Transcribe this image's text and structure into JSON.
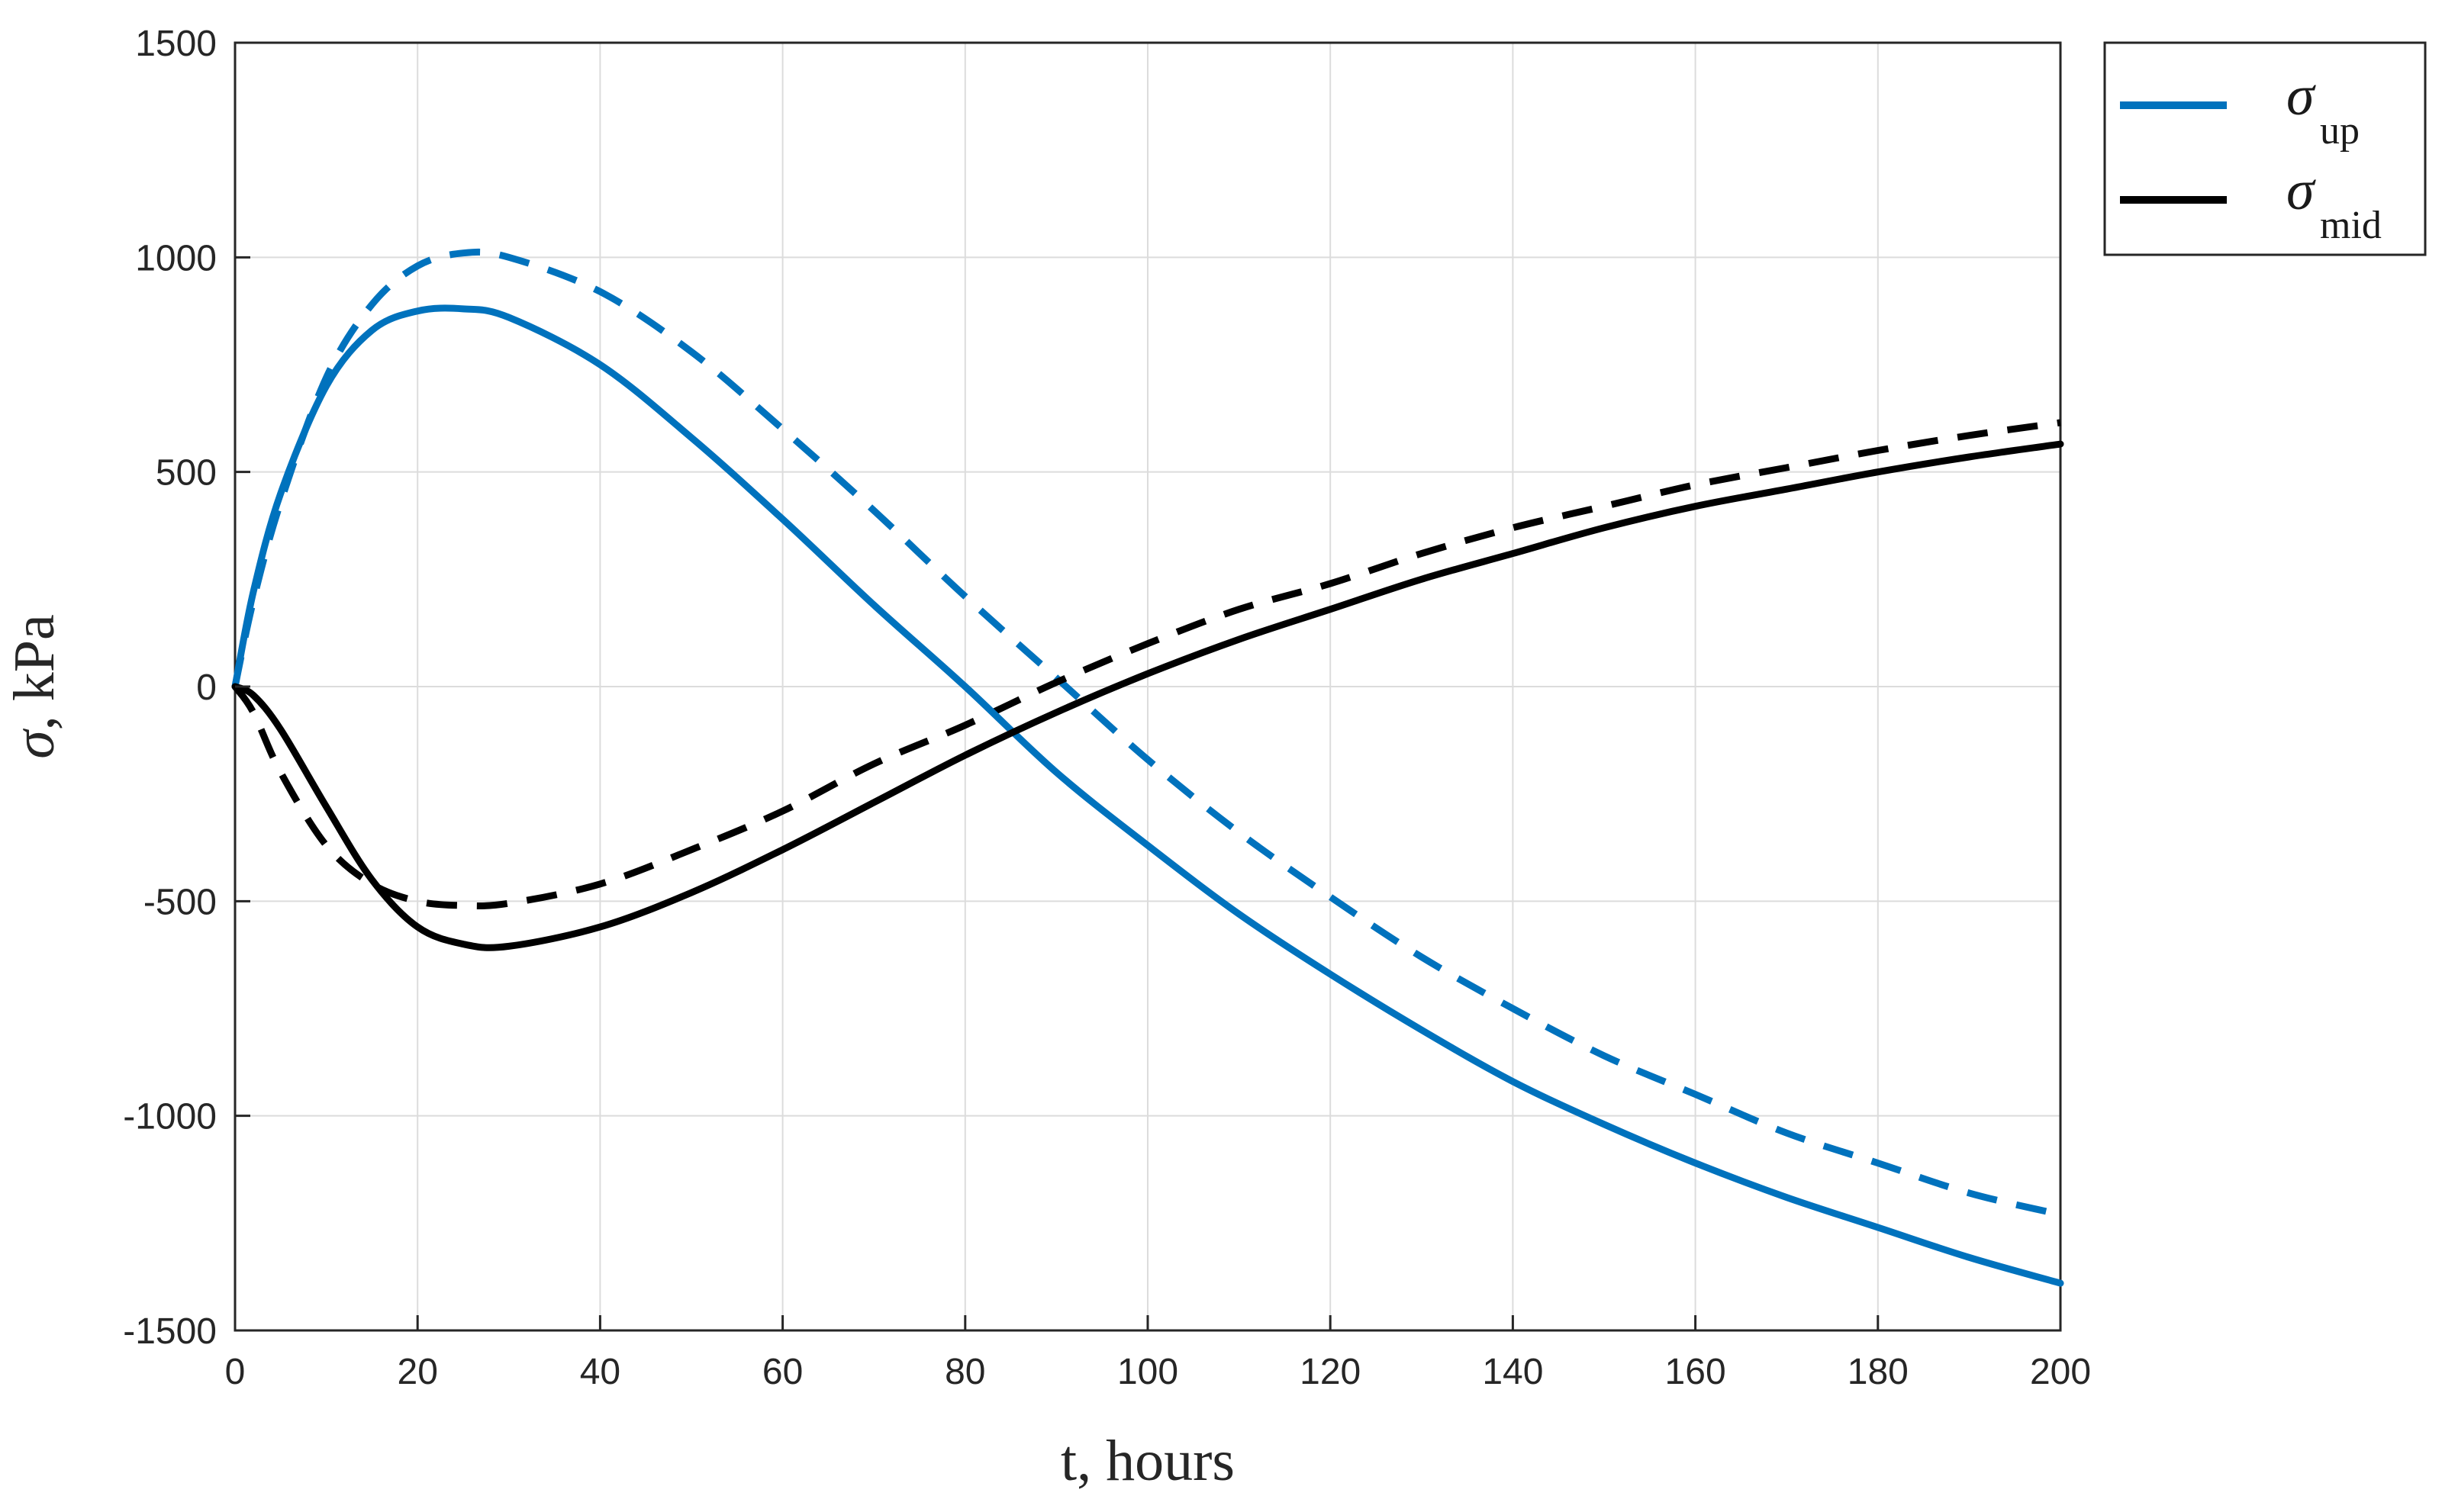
{
  "chart_data": {
    "type": "line",
    "title": "",
    "xlabel": "t, hours",
    "ylabel": "σ, kPa",
    "ylabel_symbol": "σ",
    "ylabel_unit": ", kPa",
    "xlim": [
      0,
      200
    ],
    "ylim": [
      -1500,
      1500
    ],
    "xticks": [
      0,
      20,
      40,
      60,
      80,
      100,
      120,
      140,
      160,
      180,
      200
    ],
    "yticks": [
      -1500,
      -1000,
      -500,
      0,
      500,
      1000,
      1500
    ],
    "xtick_labels": [
      "0",
      "20",
      "40",
      "60",
      "80",
      "100",
      "120",
      "140",
      "160",
      "180",
      "200"
    ],
    "ytick_labels": [
      "-1500",
      "-1000",
      "-500",
      "0",
      "500",
      "1000",
      "1500"
    ],
    "grid": true,
    "legend_position": "top-right, outside",
    "legend": [
      {
        "symbol": "σ",
        "subscript": "up",
        "color": "#0072BD",
        "style": "solid"
      },
      {
        "symbol": "σ",
        "subscript": "mid",
        "color": "#000000",
        "style": "solid"
      }
    ],
    "series": [
      {
        "name": "σ_up (solid)",
        "color": "#0072BD",
        "style": "solid",
        "x": [
          0,
          2,
          5,
          10,
          15,
          20,
          25,
          30,
          40,
          50,
          60,
          70,
          80,
          90,
          100,
          110,
          120,
          130,
          140,
          150,
          160,
          170,
          180,
          190,
          200
        ],
        "y": [
          0,
          220,
          450,
          700,
          830,
          875,
          880,
          860,
          750,
          580,
          390,
          190,
          0,
          -200,
          -370,
          -530,
          -670,
          -800,
          -920,
          -1020,
          -1110,
          -1190,
          -1260,
          -1330,
          -1390
        ]
      },
      {
        "name": "σ_up (dashed)",
        "color": "#0072BD",
        "style": "dashed",
        "x": [
          0,
          2,
          5,
          10,
          15,
          20,
          25,
          30,
          40,
          50,
          60,
          70,
          80,
          90,
          100,
          110,
          120,
          130,
          140,
          150,
          160,
          170,
          180,
          190,
          200
        ],
        "y": [
          0,
          200,
          430,
          720,
          890,
          980,
          1010,
          1000,
          920,
          780,
          600,
          410,
          210,
          20,
          -170,
          -340,
          -490,
          -630,
          -750,
          -860,
          -950,
          -1040,
          -1110,
          -1180,
          -1230
        ]
      },
      {
        "name": "σ_mid (solid)",
        "color": "#000000",
        "style": "solid",
        "x": [
          0,
          2,
          5,
          10,
          15,
          20,
          25,
          30,
          40,
          50,
          60,
          70,
          80,
          90,
          100,
          110,
          120,
          130,
          140,
          150,
          160,
          170,
          180,
          190,
          200
        ],
        "y": [
          0,
          -20,
          -100,
          -280,
          -450,
          -560,
          -600,
          -605,
          -560,
          -480,
          -380,
          -270,
          -160,
          -60,
          30,
          110,
          180,
          250,
          310,
          370,
          420,
          460,
          500,
          535,
          565
        ]
      },
      {
        "name": "σ_mid (dashed)",
        "color": "#000000",
        "style": "dashed",
        "x": [
          0,
          2,
          5,
          10,
          15,
          20,
          25,
          30,
          40,
          50,
          60,
          70,
          80,
          90,
          100,
          110,
          120,
          130,
          140,
          150,
          160,
          170,
          180,
          190,
          200
        ],
        "y": [
          0,
          -60,
          -200,
          -370,
          -460,
          -500,
          -510,
          -505,
          -460,
          -380,
          -290,
          -180,
          -90,
          10,
          100,
          180,
          240,
          310,
          370,
          420,
          470,
          510,
          550,
          585,
          615
        ]
      }
    ]
  }
}
